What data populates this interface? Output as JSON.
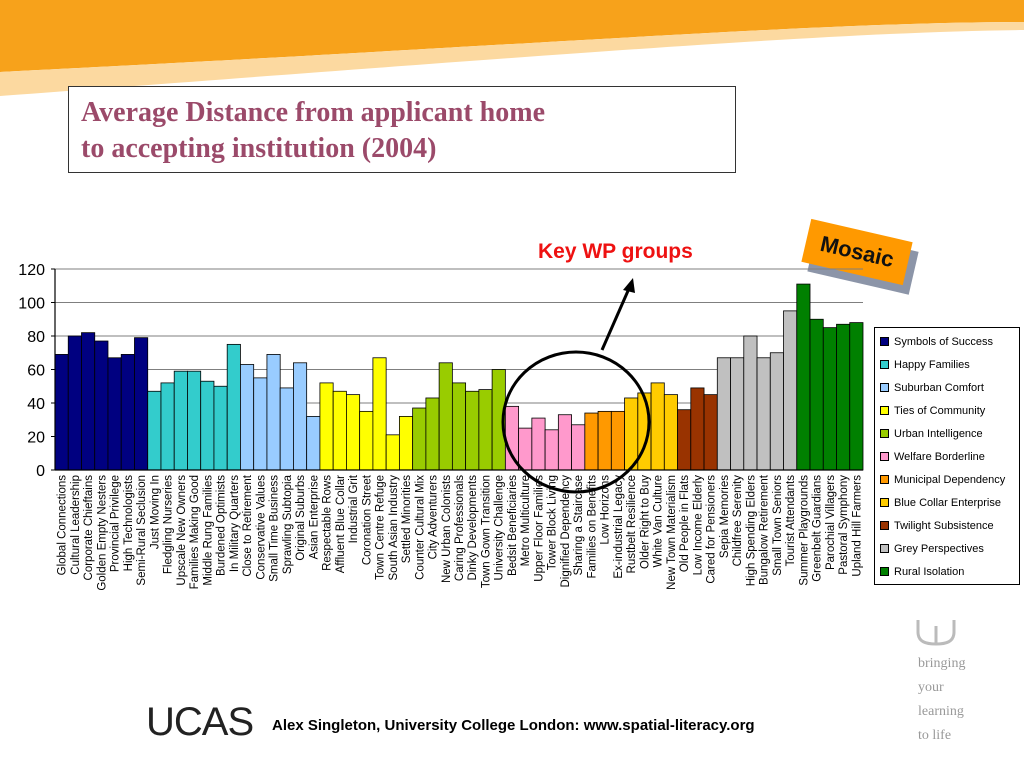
{
  "slide": {
    "title_line1": "Average Distance from applicant home",
    "title_line2": "to accepting institution (2004)",
    "key_label": "Key WP groups",
    "badge": "Mosaic",
    "footer": "Alex Singleton, University College London: www.spatial-literacy.org",
    "logo_text": "UCAS",
    "tagline": [
      "bringing",
      "your",
      "learning",
      "to life"
    ]
  },
  "chart_data": {
    "type": "bar",
    "title": "",
    "xlabel": "",
    "ylabel": "",
    "ylim": [
      0,
      120
    ],
    "yticks": [
      0,
      20,
      40,
      60,
      80,
      100,
      120
    ],
    "grid": true,
    "legend_position": "right",
    "groups": [
      {
        "name": "Symbols of Success",
        "color": "#000080"
      },
      {
        "name": "Happy Families",
        "color": "#33cccc"
      },
      {
        "name": "Suburban Comfort",
        "color": "#99ccff"
      },
      {
        "name": "Ties of Community",
        "color": "#ffff00"
      },
      {
        "name": "Urban Intelligence",
        "color": "#99cc00"
      },
      {
        "name": "Welfare Borderline",
        "color": "#ff99cc"
      },
      {
        "name": "Municipal Dependency",
        "color": "#ff9900"
      },
      {
        "name": "Blue Collar Enterprise",
        "color": "#ffcc00"
      },
      {
        "name": "Twilight Subsistence",
        "color": "#993300"
      },
      {
        "name": "Grey Perspectives",
        "color": "#c0c0c0"
      },
      {
        "name": "Rural Isolation",
        "color": "#008000"
      }
    ],
    "categories": [
      "Global Connections",
      "Cultural Leadership",
      "Corporate Chieftains",
      "Golden Empty Nesters",
      "Provincial Privilege",
      "High Technologists",
      "Semi-Rural Seclusion",
      "Just Moving In",
      "Fledgling Nurseries",
      "Upscale New Owners",
      "Families Making Good",
      "Middle Rung Families",
      "Burdened Optimists",
      "In Military Quarters",
      "Close to Retirement",
      "Conservative Values",
      "Small Time Business",
      "Sprawling Subtopia",
      "Original Suburbs",
      "Asian Enterprise",
      "Respectable Rows",
      "Affluent Blue Collar",
      "Industrial Grit",
      "Coronation Street",
      "Town Centre Refuge",
      "South Asian Industry",
      "Settled Minorities",
      "Counter Cultural Mix",
      "City Adventurers",
      "New Urban Colonists",
      "Caring Professionals",
      "Dinky Developments",
      "Town Gown Transition",
      "University Challenge",
      "Bedsit Beneficiaries",
      "Metro Multiculture",
      "Upper Floor Families",
      "Tower Block Living",
      "Dignified Dependency",
      "Sharing a Staircase",
      "Families on Benefits",
      "Low Horizons",
      "Ex-industrial Legacy",
      "Rustbelt Resilience",
      "Older Right to Buy",
      "White Van Culture",
      "New Town Materialism",
      "Old People in Flats",
      "Low Income Elderly",
      "Cared for Pensioners",
      "Sepia Memories",
      "Childfree Serenity",
      "High Spending Elders",
      "Bungalow Retirement",
      "Small Town Seniors",
      "Tourist Attendants",
      "Summer Playgrounds",
      "Greenbelt Guardians",
      "Parochial Villagers",
      "Pastoral Symphony",
      "Upland Hill Farmers"
    ],
    "group_index": [
      0,
      0,
      0,
      0,
      0,
      0,
      0,
      1,
      1,
      1,
      1,
      1,
      1,
      1,
      2,
      2,
      2,
      2,
      2,
      2,
      3,
      3,
      3,
      3,
      3,
      3,
      3,
      4,
      4,
      4,
      4,
      4,
      4,
      4,
      5,
      5,
      5,
      5,
      5,
      5,
      6,
      6,
      6,
      7,
      7,
      7,
      7,
      8,
      8,
      8,
      9,
      9,
      9,
      9,
      9,
      9,
      10,
      10,
      10,
      10,
      10
    ],
    "values": [
      69,
      80,
      82,
      77,
      67,
      69,
      79,
      47,
      52,
      59,
      59,
      53,
      50,
      75,
      63,
      55,
      69,
      49,
      64,
      32,
      52,
      47,
      45,
      35,
      67,
      21,
      32,
      37,
      43,
      64,
      52,
      47,
      48,
      60,
      38,
      25,
      31,
      24,
      33,
      27,
      34,
      35,
      35,
      43,
      46,
      52,
      45,
      36,
      49,
      45,
      67,
      67,
      80,
      67,
      70,
      95,
      111,
      90,
      85,
      87,
      88
    ]
  }
}
